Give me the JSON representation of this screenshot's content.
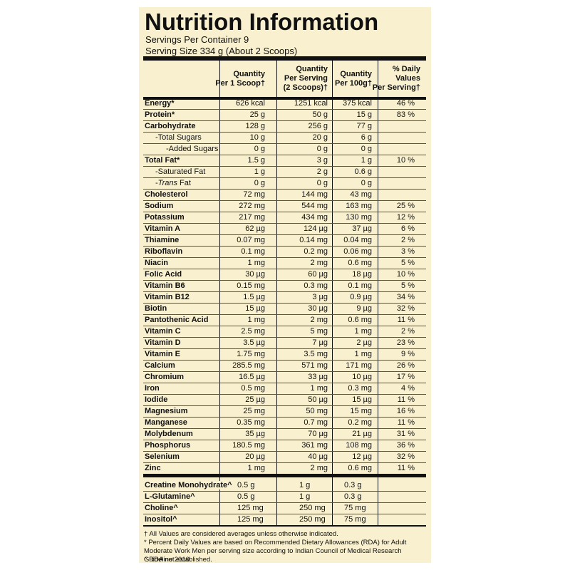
{
  "header": {
    "title": "Nutrition Information",
    "servings": "Servings Per Container 9",
    "serving_size": "Serving Size 334 g (About 2 Scoops)"
  },
  "table": {
    "columns": [
      [
        "Quantity",
        "Per 1 Scoop†"
      ],
      [
        "Quantity",
        "Per Serving",
        "(2 Scoops)†"
      ],
      [
        "Quantity",
        "Per 100g†"
      ],
      [
        "% Daily",
        "Values",
        "Per Serving†"
      ]
    ],
    "rows": [
      [
        "Energy*",
        "626 kcal",
        "1251 kcal",
        "375 kcal",
        "46 %"
      ],
      [
        "Protein*",
        "25 g",
        "50 g",
        "15 g",
        "83 %"
      ],
      [
        "Carbohydrate",
        "128 g",
        "256 g",
        "77 g",
        null
      ],
      [
        "-Total Sugars",
        "10 g",
        "20 g",
        "6 g",
        null
      ],
      [
        "-Added Sugars",
        "0 g",
        "0 g",
        "0 g",
        null
      ],
      [
        "Total Fat*",
        "1.5 g",
        "3 g",
        "1 g",
        "10 %"
      ],
      [
        "-Saturated Fat",
        "1 g",
        "2 g",
        "0.6 g",
        null
      ],
      [
        "-Trans Fat",
        "0 g",
        "0 g",
        "0 g",
        null
      ],
      [
        "Cholesterol",
        "72 mg",
        "144 mg",
        "43 mg",
        null
      ],
      [
        "Sodium",
        "272 mg",
        "544 mg",
        "163 mg",
        "25 %"
      ],
      [
        "Potassium",
        "217 mg",
        "434 mg",
        "130 mg",
        "12 %"
      ],
      [
        "Vitamin A",
        "62 µg",
        "124 µg",
        "37 µg",
        "6 %"
      ],
      [
        "Thiamine",
        "0.07 mg",
        "0.14 mg",
        "0.04 mg",
        "2 %"
      ],
      [
        "Riboflavin",
        "0.1 mg",
        "0.2 mg",
        "0.06 mg",
        "3 %"
      ],
      [
        "Niacin",
        "1 mg",
        "2 mg",
        "0.6 mg",
        "5 %"
      ],
      [
        "Folic Acid",
        "30 µg",
        "60 µg",
        "18 µg",
        "10 %"
      ],
      [
        "Vitamin B6",
        "0.15 mg",
        "0.3 mg",
        "0.1 mg",
        "5 %"
      ],
      [
        "Vitamin B12",
        "1.5 µg",
        "3 µg",
        "0.9 µg",
        "34 %"
      ],
      [
        "Biotin",
        "15 µg",
        "30 µg",
        "9 µg",
        "32 %"
      ],
      [
        "Pantothenic Acid",
        "1 mg",
        "2 mg",
        "0.6 mg",
        "11 %"
      ],
      [
        "Vitamin C",
        "2.5 mg",
        "5 mg",
        "1 mg",
        "2 %"
      ],
      [
        "Vitamin D",
        "3.5 µg",
        "7 µg",
        "2 µg",
        "23 %"
      ],
      [
        "Vitamin E",
        "1.75 mg",
        "3.5 mg",
        "1 mg",
        "9 %"
      ],
      [
        "Calcium",
        "285.5 mg",
        "571 mg",
        "171 mg",
        "26 %"
      ],
      [
        "Chromium",
        "16.5 µg",
        "33 µg",
        "10 µg",
        "17 %"
      ],
      [
        "Iron",
        "0.5 mg",
        "1 mg",
        "0.3 mg",
        "4 %"
      ],
      [
        "Iodide",
        "25 µg",
        "50 µg",
        "15 µg",
        "11 %"
      ],
      [
        "Magnesium",
        "25 mg",
        "50 mg",
        "15 mg",
        "16 %"
      ],
      [
        "Manganese",
        "0.35 mg",
        "0.7 mg",
        "0.2 mg",
        "11 %"
      ],
      [
        "Molybdenum",
        "35 µg",
        "70 µg",
        "21 µg",
        "31 %"
      ],
      [
        "Phosphorus",
        "180.5 mg",
        "361 mg",
        "108 mg",
        "36 %"
      ],
      [
        "Selenium",
        "20 µg",
        "40 µg",
        "12 µg",
        "32 %"
      ],
      [
        "Zinc",
        "1 mg",
        "2 mg",
        "0.6 mg",
        "11 %"
      ]
    ],
    "extra_rows": [
      [
        "Creatine Monohydrate^",
        "0.5 g",
        "1 g",
        "0.3 g"
      ],
      [
        "L-Glutamine^",
        "0.5 g",
        "1 g",
        "0.3 g"
      ],
      [
        "Choline^",
        "125 mg",
        "250 mg",
        "75 mg"
      ],
      [
        "Inositol^",
        "125 mg",
        "250 mg",
        "75 mg"
      ]
    ]
  },
  "footnotes": [
    "† All Values are considered averages unless otherwise indicated.",
    "* Percent Daily Values are based on Recommended Dietary Allowances (RDA) for Adult Moderate Work Men per serving size according to Indian Council of Medical Research Guideline 2010.",
    "^ RDA not established."
  ]
}
